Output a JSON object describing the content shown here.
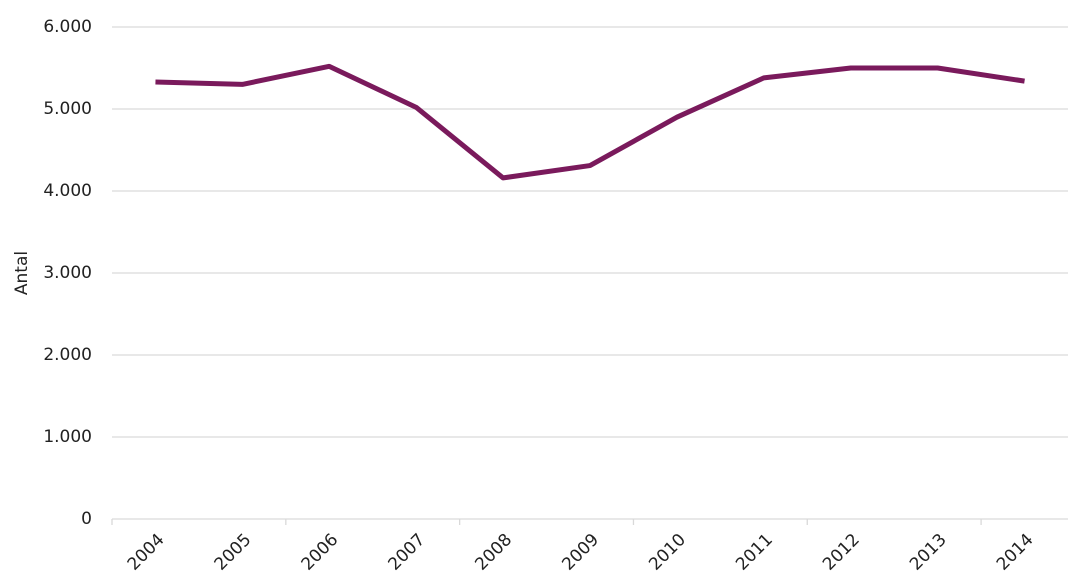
{
  "chart_data": {
    "type": "line",
    "y_label": "Antal",
    "categories": [
      "2004",
      "2005",
      "2006",
      "2007",
      "2008",
      "2009",
      "2010",
      "2011",
      "2012",
      "2013",
      "2014"
    ],
    "series": [
      {
        "name": "Antal",
        "color": "#7a1a5c",
        "values": [
          5330,
          5300,
          5520,
          5020,
          4160,
          4310,
          4900,
          5380,
          5500,
          5500,
          5340
        ]
      }
    ],
    "ylim": [
      0,
      6000
    ],
    "yticks": [
      0,
      {
        "value": 1000,
        "label": "1.000"
      },
      {
        "value": 2000,
        "label": "2.000"
      },
      {
        "value": 3000,
        "label": "3.000"
      },
      {
        "value": 4000,
        "label": "4.000"
      },
      {
        "value": 5000,
        "label": "5.000"
      },
      {
        "value": 6000,
        "label": "6.000"
      }
    ],
    "grid": true
  }
}
